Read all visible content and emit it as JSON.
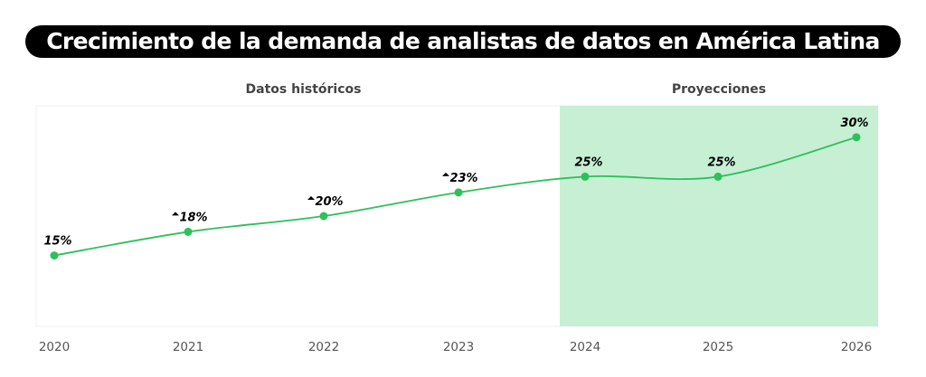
{
  "chart_data": {
    "type": "line",
    "title": "Crecimiento de la demanda de analistas de datos en América Latina",
    "section_labels": {
      "historical": "Datos históricos",
      "projection": "Proyecciones"
    },
    "categories": [
      "2020",
      "2021",
      "2022",
      "2023",
      "2024",
      "2025",
      "2026"
    ],
    "values": [
      15,
      18,
      20,
      23,
      25,
      25,
      30
    ],
    "data_labels": [
      "15%",
      "18%",
      "20%",
      "23%",
      "25%",
      "25%",
      "30%"
    ],
    "increase_markers": [
      false,
      true,
      true,
      true,
      false,
      false,
      false
    ],
    "projection_start": "2024",
    "ylim": [
      6,
      34
    ],
    "grid": false,
    "colors": {
      "line": "#2ec05a",
      "projection_band": "#c6efd4",
      "title_bg": "#000000"
    }
  }
}
